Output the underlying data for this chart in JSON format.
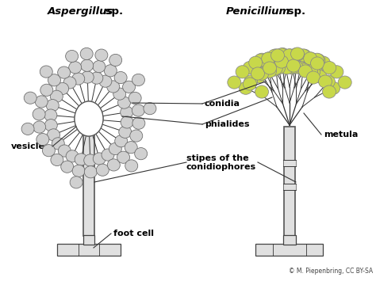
{
  "bg_color": "#ffffff",
  "line_color": "#333333",
  "vesicle_color": "#ffffff",
  "vesicle_edge": "#555555",
  "conidia_asper_color": "#d0d0d0",
  "conidia_asper_edge": "#666666",
  "conidia_pen_color": "#c8d84a",
  "conidia_pen_edge": "#888888",
  "stipe_color": "#e0e0e0",
  "stipe_edge": "#555555",
  "foot_base_color": "#e0e0e0",
  "foot_base_edge": "#444444",
  "title_asper_italic": "Aspergillus",
  "title_asper_normal": " sp.",
  "title_pen_italic": "Penicillium",
  "title_pen_normal": " sp.",
  "label_conidia": "conidia",
  "label_phialides": "phialides",
  "label_metula": "metula",
  "label_vesicle": "vesicle",
  "label_stipes_line1": "stipes of the",
  "label_stipes_line2": "conidiophores",
  "label_foot": "foot cell",
  "credit": "© M. Piepenbring, CC BY-SA",
  "fig_width": 4.74,
  "fig_height": 3.55,
  "dpi": 100
}
